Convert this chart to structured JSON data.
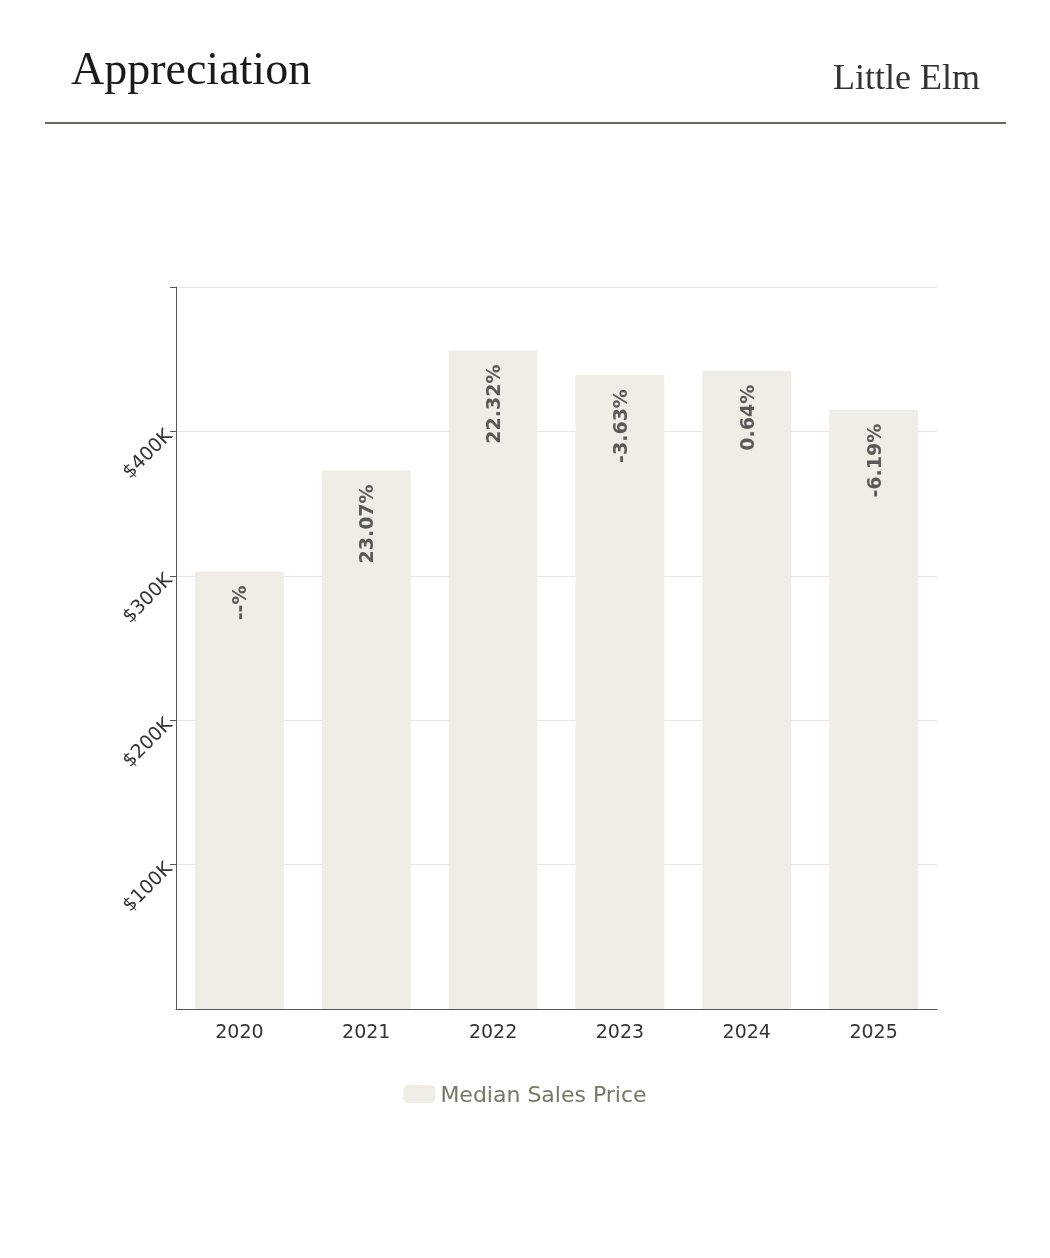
{
  "chart_data": {
    "type": "bar",
    "title": "Appreciation",
    "subtitle": "Little Elm",
    "categories": [
      "2020",
      "2021",
      "2022",
      "2023",
      "2024",
      "2025"
    ],
    "series": [
      {
        "name": "Median Sales Price",
        "color": "#f0ede6",
        "values": [
          303000,
          373000,
          456000,
          439000,
          442000,
          415000
        ]
      }
    ],
    "annotations": [
      {
        "text": "--%",
        "x": "2020",
        "y": 303000
      },
      {
        "text": "23.07%",
        "x": "2021",
        "y": 373000
      },
      {
        "text": "22.32%",
        "x": "2022",
        "y": 456000
      },
      {
        "text": "-3.63%",
        "x": "2023",
        "y": 439000
      },
      {
        "text": "0.64%",
        "x": "2024",
        "y": 442000
      },
      {
        "text": "-6.19%",
        "x": "2025",
        "y": 415000
      }
    ],
    "ylim": [
      0,
      500000
    ],
    "yticks": [
      {
        "value": 100000,
        "label": "$100K"
      },
      {
        "value": 200000,
        "label": "$200K"
      },
      {
        "value": 300000,
        "label": "$300K"
      },
      {
        "value": 400000,
        "label": "$400K"
      },
      {
        "value": 500000,
        "label": null
      }
    ],
    "grid": "y",
    "legend": "bottom"
  }
}
